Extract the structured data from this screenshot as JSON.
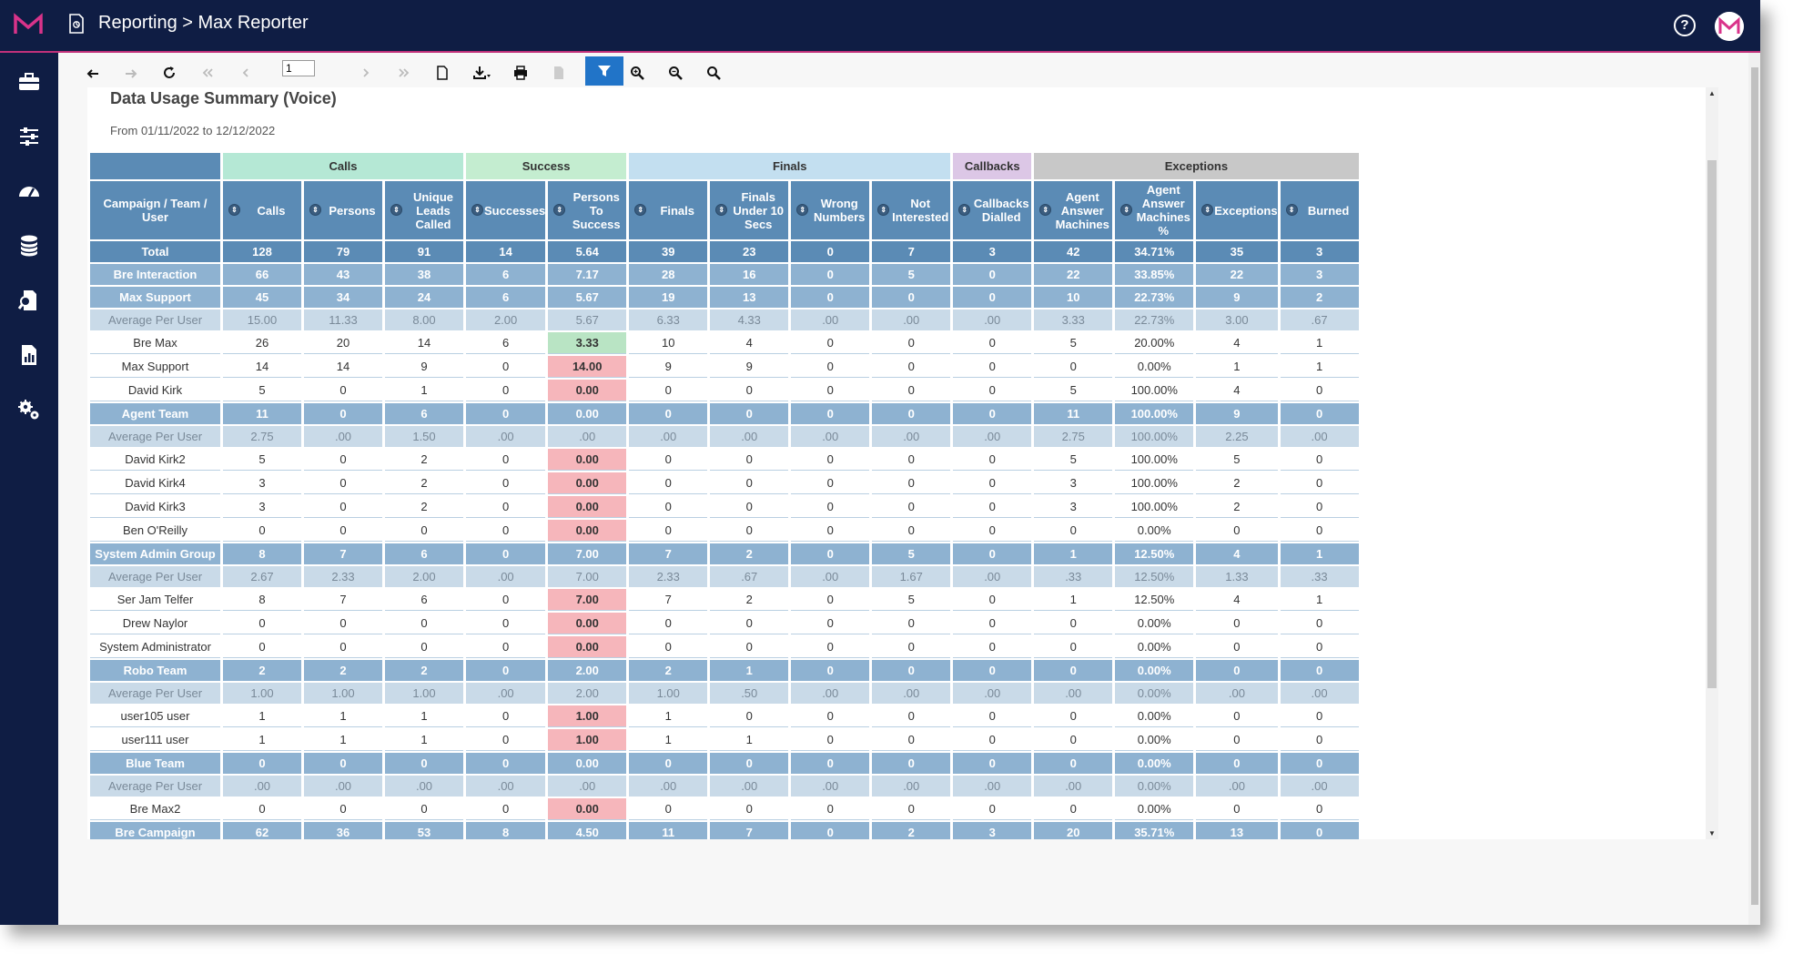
{
  "header": {
    "title": "Reporting > Max Reporter",
    "brand_color": "#0f1d44",
    "accent_color": "#c0307a"
  },
  "sidebar": {
    "items": [
      {
        "icon": "briefcase-icon"
      },
      {
        "icon": "sliders-icon"
      },
      {
        "icon": "dashboard-gauge-icon"
      },
      {
        "icon": "database-icon"
      },
      {
        "icon": "document-search-icon"
      },
      {
        "icon": "report-chart-icon"
      },
      {
        "icon": "settings-gears-icon"
      }
    ]
  },
  "toolbar": {
    "page_number": "1"
  },
  "report": {
    "title": "Data Usage Summary (Voice)",
    "range": "From 01/11/2022 to 12/12/2022",
    "group_headers": [
      {
        "label": "",
        "span": 1,
        "color": "#ffffff"
      },
      {
        "label": "Calls",
        "span": 3,
        "color": "#b5e8d5"
      },
      {
        "label": "Success",
        "span": 2,
        "color": "#c4edd0"
      },
      {
        "label": "Finals",
        "span": 4,
        "color": "#c3dff0"
      },
      {
        "label": "Callbacks",
        "span": 1,
        "color": "#dcc7e6"
      },
      {
        "label": "Exceptions",
        "span": 4,
        "color": "#c8c8c8"
      }
    ],
    "columns": [
      "Campaign / Team / User",
      "Calls",
      "Persons",
      "Unique Leads Called",
      "Successes",
      "Persons To Success",
      "Finals",
      "Finals Under 10 Secs",
      "Wrong Numbers",
      "Not Interested",
      "Callbacks Dialled",
      "Agent Answer Machines",
      "Agent Answer Machines %",
      "Exceptions",
      "Burned"
    ],
    "rows": [
      {
        "type": "total",
        "cells": [
          "Total",
          "128",
          "79",
          "91",
          "14",
          "5.64",
          "39",
          "23",
          "0",
          "7",
          "3",
          "42",
          "34.71%",
          "35",
          "3"
        ]
      },
      {
        "type": "team",
        "cells": [
          "Bre Interaction",
          "66",
          "43",
          "38",
          "6",
          "7.17",
          "28",
          "16",
          "0",
          "5",
          "0",
          "22",
          "33.85%",
          "22",
          "3"
        ]
      },
      {
        "type": "team",
        "cells": [
          "Max Support",
          "45",
          "34",
          "24",
          "6",
          "5.67",
          "19",
          "13",
          "0",
          "0",
          "0",
          "10",
          "22.73%",
          "9",
          "2"
        ]
      },
      {
        "type": "avg",
        "cells": [
          "Average Per User",
          "15.00",
          "11.33",
          "8.00",
          "2.00",
          "5.67",
          "6.33",
          "4.33",
          ".00",
          ".00",
          ".00",
          "3.33",
          "22.73%",
          "3.00",
          ".67"
        ]
      },
      {
        "type": "user",
        "pts": "pos",
        "cells": [
          "Bre Max",
          "26",
          "20",
          "14",
          "6",
          "3.33",
          "10",
          "4",
          "0",
          "0",
          "0",
          "5",
          "20.00%",
          "4",
          "1"
        ]
      },
      {
        "type": "user",
        "pts": "neg",
        "cells": [
          "Max Support",
          "14",
          "14",
          "9",
          "0",
          "14.00",
          "9",
          "9",
          "0",
          "0",
          "0",
          "0",
          "0.00%",
          "1",
          "1"
        ]
      },
      {
        "type": "user",
        "pts": "neg",
        "cells": [
          "David Kirk",
          "5",
          "0",
          "1",
          "0",
          "0.00",
          "0",
          "0",
          "0",
          "0",
          "0",
          "5",
          "100.00%",
          "4",
          "0"
        ]
      },
      {
        "type": "team",
        "cells": [
          "Agent Team",
          "11",
          "0",
          "6",
          "0",
          "0.00",
          "0",
          "0",
          "0",
          "0",
          "0",
          "11",
          "100.00%",
          "9",
          "0"
        ]
      },
      {
        "type": "avg",
        "cells": [
          "Average Per User",
          "2.75",
          ".00",
          "1.50",
          ".00",
          ".00",
          ".00",
          ".00",
          ".00",
          ".00",
          ".00",
          "2.75",
          "100.00%",
          "2.25",
          ".00"
        ]
      },
      {
        "type": "user",
        "pts": "neg",
        "cells": [
          "David Kirk2",
          "5",
          "0",
          "2",
          "0",
          "0.00",
          "0",
          "0",
          "0",
          "0",
          "0",
          "5",
          "100.00%",
          "5",
          "0"
        ]
      },
      {
        "type": "user",
        "pts": "neg",
        "cells": [
          "David Kirk4",
          "3",
          "0",
          "2",
          "0",
          "0.00",
          "0",
          "0",
          "0",
          "0",
          "0",
          "3",
          "100.00%",
          "2",
          "0"
        ]
      },
      {
        "type": "user",
        "pts": "neg",
        "cells": [
          "David Kirk3",
          "3",
          "0",
          "2",
          "0",
          "0.00",
          "0",
          "0",
          "0",
          "0",
          "0",
          "3",
          "100.00%",
          "2",
          "0"
        ]
      },
      {
        "type": "user",
        "pts": "neg",
        "cells": [
          "Ben O'Reilly",
          "0",
          "0",
          "0",
          "0",
          "0.00",
          "0",
          "0",
          "0",
          "0",
          "0",
          "0",
          "0.00%",
          "0",
          "0"
        ]
      },
      {
        "type": "team",
        "cells": [
          "System Admin Group",
          "8",
          "7",
          "6",
          "0",
          "7.00",
          "7",
          "2",
          "0",
          "5",
          "0",
          "1",
          "12.50%",
          "4",
          "1"
        ]
      },
      {
        "type": "avg",
        "cells": [
          "Average Per User",
          "2.67",
          "2.33",
          "2.00",
          ".00",
          "7.00",
          "2.33",
          ".67",
          ".00",
          "1.67",
          ".00",
          ".33",
          "12.50%",
          "1.33",
          ".33"
        ]
      },
      {
        "type": "user",
        "pts": "neg",
        "cells": [
          "Ser Jam Telfer",
          "8",
          "7",
          "6",
          "0",
          "7.00",
          "7",
          "2",
          "0",
          "5",
          "0",
          "1",
          "12.50%",
          "4",
          "1"
        ]
      },
      {
        "type": "user",
        "pts": "neg",
        "cells": [
          "Drew Naylor",
          "0",
          "0",
          "0",
          "0",
          "0.00",
          "0",
          "0",
          "0",
          "0",
          "0",
          "0",
          "0.00%",
          "0",
          "0"
        ]
      },
      {
        "type": "user",
        "pts": "neg",
        "cells": [
          "System Administrator",
          "0",
          "0",
          "0",
          "0",
          "0.00",
          "0",
          "0",
          "0",
          "0",
          "0",
          "0",
          "0.00%",
          "0",
          "0"
        ]
      },
      {
        "type": "team",
        "cells": [
          "Robo Team",
          "2",
          "2",
          "2",
          "0",
          "2.00",
          "2",
          "1",
          "0",
          "0",
          "0",
          "0",
          "0.00%",
          "0",
          "0"
        ]
      },
      {
        "type": "avg",
        "cells": [
          "Average Per User",
          "1.00",
          "1.00",
          "1.00",
          ".00",
          "2.00",
          "1.00",
          ".50",
          ".00",
          ".00",
          ".00",
          ".00",
          "0.00%",
          ".00",
          ".00"
        ]
      },
      {
        "type": "user",
        "pts": "neg",
        "cells": [
          "user105 user",
          "1",
          "1",
          "1",
          "0",
          "1.00",
          "1",
          "0",
          "0",
          "0",
          "0",
          "0",
          "0.00%",
          "0",
          "0"
        ]
      },
      {
        "type": "user",
        "pts": "neg",
        "cells": [
          "user111 user",
          "1",
          "1",
          "1",
          "0",
          "1.00",
          "1",
          "1",
          "0",
          "0",
          "0",
          "0",
          "0.00%",
          "0",
          "0"
        ]
      },
      {
        "type": "team",
        "cells": [
          "Blue Team",
          "0",
          "0",
          "0",
          "0",
          "0.00",
          "0",
          "0",
          "0",
          "0",
          "0",
          "0",
          "0.00%",
          "0",
          "0"
        ]
      },
      {
        "type": "avg",
        "cells": [
          "Average Per User",
          ".00",
          ".00",
          ".00",
          ".00",
          ".00",
          ".00",
          ".00",
          ".00",
          ".00",
          ".00",
          ".00",
          "0.00%",
          ".00",
          ".00"
        ]
      },
      {
        "type": "user",
        "pts": "neg",
        "cells": [
          "Bre Max2",
          "0",
          "0",
          "0",
          "0",
          "0.00",
          "0",
          "0",
          "0",
          "0",
          "0",
          "0",
          "0.00%",
          "0",
          "0"
        ]
      },
      {
        "type": "team",
        "cells": [
          "Bre Campaign",
          "62",
          "36",
          "53",
          "8",
          "4.50",
          "11",
          "7",
          "0",
          "2",
          "3",
          "20",
          "35.71%",
          "13",
          "0"
        ]
      }
    ]
  }
}
